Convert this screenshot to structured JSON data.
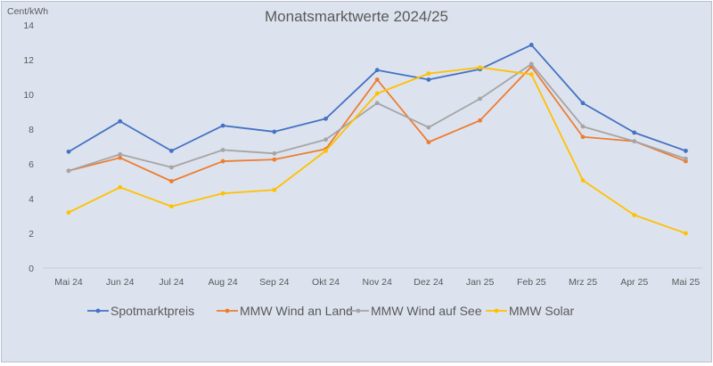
{
  "chart_data": {
    "type": "line",
    "title": "Monatsmarktwerte 2024/25",
    "ylabel": "Cent/kWh",
    "xlabel": "",
    "categories": [
      "Mai 24",
      "Jun 24",
      "Jul 24",
      "Aug 24",
      "Sep 24",
      "Okt 24",
      "Nov 24",
      "Dez 24",
      "Jan 25",
      "Feb 25",
      "Mrz 25",
      "Apr 25",
      "Mai 25"
    ],
    "ylim": [
      0,
      14
    ],
    "yticks": [
      0,
      2,
      4,
      6,
      8,
      10,
      12,
      14
    ],
    "grid": false,
    "legend_position": "bottom",
    "series": [
      {
        "name": "Spotmarktpreis",
        "color": "#4472c4",
        "marker": "dot",
        "values": [
          6.7,
          8.45,
          6.75,
          8.2,
          7.85,
          8.6,
          11.4,
          10.85,
          11.45,
          12.85,
          9.5,
          7.8,
          6.75
        ]
      },
      {
        "name": "MMW Wind an Land",
        "color": "#ed7d31",
        "marker": "dot",
        "values": [
          5.6,
          6.35,
          5.0,
          6.15,
          6.25,
          6.85,
          10.85,
          7.25,
          8.5,
          11.6,
          7.55,
          7.3,
          6.15
        ]
      },
      {
        "name": "MMW Wind auf See",
        "color": "#a5a5a5",
        "marker": "dot",
        "values": [
          5.6,
          6.55,
          5.8,
          6.8,
          6.6,
          7.4,
          9.5,
          8.1,
          9.75,
          11.75,
          8.15,
          7.3,
          6.3
        ]
      },
      {
        "name": "MMW Solar",
        "color": "#ffc000",
        "marker": "dot",
        "values": [
          3.2,
          4.65,
          3.55,
          4.3,
          4.5,
          6.75,
          10.05,
          11.2,
          11.55,
          11.15,
          5.05,
          3.05,
          2.0
        ]
      }
    ]
  }
}
